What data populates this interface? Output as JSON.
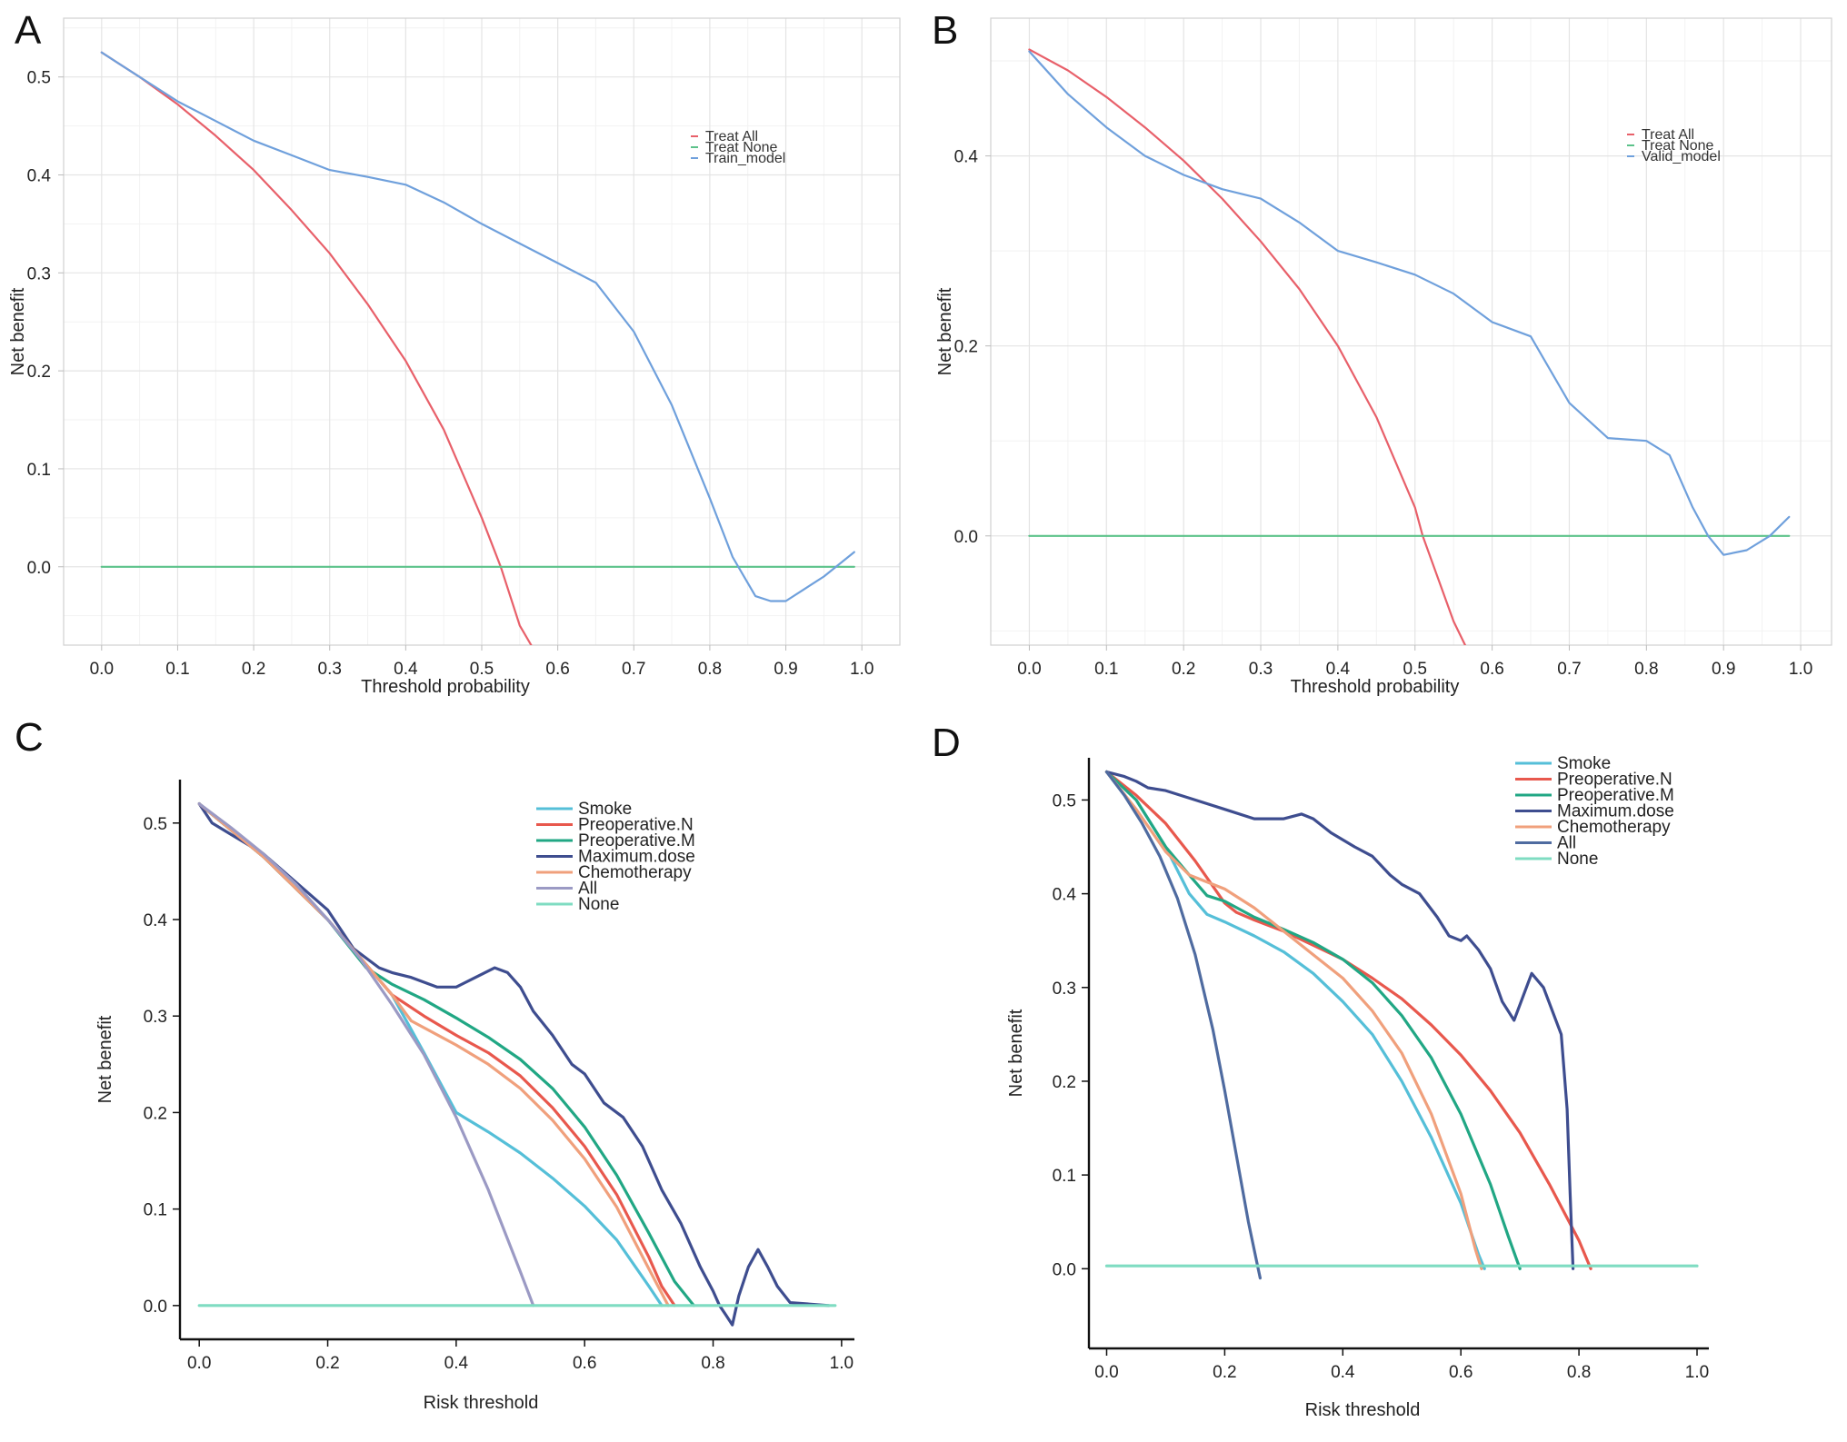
{
  "chart_data": [
    {
      "panel": "A",
      "type": "line",
      "xlabel": "Threshold probability",
      "ylabel": "Net benefit",
      "xlim": [
        -0.05,
        1.05
      ],
      "ylim": [
        -0.08,
        0.56
      ],
      "xticks": [
        "0.0",
        "0.1",
        "0.2",
        "0.3",
        "0.4",
        "0.5",
        "0.6",
        "0.7",
        "0.8",
        "0.9",
        "1.0"
      ],
      "xtick_values": [
        0,
        0.1,
        0.2,
        0.3,
        0.4,
        0.5,
        0.6,
        0.7,
        0.8,
        0.9,
        1.0
      ],
      "yticks": [
        "0.0",
        "0.1",
        "0.2",
        "0.3",
        "0.4",
        "0.5"
      ],
      "ytick_values": [
        0,
        0.1,
        0.2,
        0.3,
        0.4,
        0.5
      ],
      "grid": true,
      "legend_position": "top-right",
      "legend_style": "small",
      "series": [
        {
          "name": "Treat All",
          "color": "#e8606a",
          "x": [
            0,
            0.05,
            0.1,
            0.15,
            0.2,
            0.25,
            0.3,
            0.35,
            0.4,
            0.45,
            0.5,
            0.525,
            0.55,
            0.565
          ],
          "y": [
            0.525,
            0.5,
            0.472,
            0.44,
            0.405,
            0.364,
            0.32,
            0.268,
            0.21,
            0.14,
            0.05,
            0,
            -0.06,
            -0.08
          ]
        },
        {
          "name": "Treat None",
          "color": "#5cc28a",
          "x": [
            0,
            0.99
          ],
          "y": [
            0,
            0
          ]
        },
        {
          "name": "Train_model",
          "color": "#6fa0dc",
          "x": [
            0,
            0.05,
            0.1,
            0.15,
            0.2,
            0.25,
            0.3,
            0.35,
            0.4,
            0.45,
            0.5,
            0.55,
            0.6,
            0.65,
            0.7,
            0.75,
            0.8,
            0.83,
            0.86,
            0.88,
            0.9,
            0.92,
            0.95,
            0.99
          ],
          "y": [
            0.525,
            0.5,
            0.475,
            0.455,
            0.435,
            0.42,
            0.405,
            0.398,
            0.39,
            0.372,
            0.35,
            0.33,
            0.31,
            0.29,
            0.24,
            0.165,
            0.07,
            0.01,
            -0.03,
            -0.035,
            -0.035,
            -0.025,
            -0.01,
            0.015
          ]
        }
      ]
    },
    {
      "panel": "B",
      "type": "line",
      "xlabel": "Threshold probability",
      "ylabel": "Net benefit",
      "xlim": [
        -0.05,
        1.04
      ],
      "ylim": [
        -0.115,
        0.545
      ],
      "xticks": [
        "0.0",
        "0.1",
        "0.2",
        "0.3",
        "0.4",
        "0.5",
        "0.6",
        "0.7",
        "0.8",
        "0.9",
        "1.0"
      ],
      "xtick_values": [
        0,
        0.1,
        0.2,
        0.3,
        0.4,
        0.5,
        0.6,
        0.7,
        0.8,
        0.9,
        1.0
      ],
      "yticks": [
        "0.0",
        "0.2",
        "0.4"
      ],
      "ytick_values": [
        0,
        0.2,
        0.4
      ],
      "grid": true,
      "legend_position": "top-right",
      "legend_style": "small",
      "series": [
        {
          "name": "Treat All",
          "color": "#e8606a",
          "x": [
            0,
            0.05,
            0.1,
            0.15,
            0.2,
            0.25,
            0.3,
            0.35,
            0.4,
            0.45,
            0.5,
            0.51,
            0.55,
            0.565
          ],
          "y": [
            0.512,
            0.49,
            0.462,
            0.43,
            0.395,
            0.355,
            0.31,
            0.26,
            0.2,
            0.125,
            0.03,
            0,
            -0.09,
            -0.115
          ]
        },
        {
          "name": "Treat None",
          "color": "#5cc28a",
          "x": [
            0,
            0.985
          ],
          "y": [
            0,
            0
          ]
        },
        {
          "name": "Valid_model",
          "color": "#6fa0dc",
          "x": [
            0,
            0.05,
            0.1,
            0.15,
            0.2,
            0.25,
            0.3,
            0.35,
            0.4,
            0.45,
            0.5,
            0.55,
            0.6,
            0.65,
            0.7,
            0.75,
            0.8,
            0.83,
            0.86,
            0.88,
            0.9,
            0.93,
            0.96,
            0.985
          ],
          "y": [
            0.51,
            0.465,
            0.43,
            0.4,
            0.38,
            0.365,
            0.355,
            0.33,
            0.3,
            0.288,
            0.275,
            0.255,
            0.225,
            0.21,
            0.14,
            0.103,
            0.1,
            0.085,
            0.03,
            0,
            -0.02,
            -0.015,
            0,
            0.02
          ]
        }
      ]
    },
    {
      "panel": "C",
      "type": "line",
      "xlabel": "Risk threshold",
      "ylabel": "Net benefit",
      "xlim": [
        -0.03,
        1.02
      ],
      "ylim": [
        -0.035,
        0.545
      ],
      "xticks": [
        "0.0",
        "0.2",
        "0.4",
        "0.6",
        "0.8",
        "1.0"
      ],
      "xtick_values": [
        0,
        0.2,
        0.4,
        0.6,
        0.8,
        1.0
      ],
      "yticks": [
        "0.0",
        "0.1",
        "0.2",
        "0.3",
        "0.4",
        "0.5"
      ],
      "ytick_values": [
        0,
        0.1,
        0.2,
        0.3,
        0.4,
        0.5
      ],
      "grid": false,
      "legend_position": "top-right",
      "legend_style": "large",
      "series": [
        {
          "name": "Smoke",
          "color": "#55bfd8",
          "x": [
            0,
            0.1,
            0.2,
            0.3,
            0.35,
            0.4,
            0.45,
            0.5,
            0.55,
            0.6,
            0.65,
            0.7,
            0.72
          ],
          "y": [
            0.52,
            0.465,
            0.4,
            0.322,
            0.262,
            0.2,
            0.18,
            0.158,
            0.132,
            0.103,
            0.068,
            0.02,
            0
          ]
        },
        {
          "name": "Preoperative.N",
          "color": "#e8584d",
          "x": [
            0,
            0.1,
            0.2,
            0.3,
            0.35,
            0.4,
            0.45,
            0.5,
            0.55,
            0.6,
            0.65,
            0.7,
            0.72,
            0.74
          ],
          "y": [
            0.52,
            0.465,
            0.4,
            0.322,
            0.3,
            0.28,
            0.262,
            0.238,
            0.205,
            0.165,
            0.115,
            0.05,
            0.02,
            0
          ]
        },
        {
          "name": "Preoperative.M",
          "color": "#21a784",
          "x": [
            0,
            0.1,
            0.2,
            0.26,
            0.3,
            0.35,
            0.4,
            0.45,
            0.5,
            0.55,
            0.6,
            0.65,
            0.7,
            0.74,
            0.77
          ],
          "y": [
            0.52,
            0.465,
            0.4,
            0.35,
            0.333,
            0.317,
            0.298,
            0.278,
            0.255,
            0.225,
            0.185,
            0.135,
            0.075,
            0.025,
            0
          ]
        },
        {
          "name": "Maximum.dose",
          "color": "#3e4d8f",
          "x": [
            0,
            0.02,
            0.1,
            0.2,
            0.24,
            0.28,
            0.3,
            0.33,
            0.37,
            0.4,
            0.43,
            0.46,
            0.48,
            0.5,
            0.52,
            0.55,
            0.58,
            0.6,
            0.63,
            0.66,
            0.69,
            0.72,
            0.75,
            0.78,
            0.8,
            0.81,
            0.82,
            0.83,
            0.84,
            0.855,
            0.87,
            0.885,
            0.9,
            0.92,
            0.98
          ],
          "y": [
            0.52,
            0.5,
            0.468,
            0.41,
            0.37,
            0.35,
            0.345,
            0.34,
            0.33,
            0.33,
            0.34,
            0.35,
            0.345,
            0.33,
            0.305,
            0.28,
            0.25,
            0.24,
            0.21,
            0.195,
            0.165,
            0.12,
            0.085,
            0.04,
            0.015,
            0,
            -0.01,
            -0.02,
            0.01,
            0.04,
            0.058,
            0.04,
            0.02,
            0.003,
            0
          ]
        },
        {
          "name": "Chemotherapy",
          "color": "#f0a07c",
          "x": [
            0,
            0.1,
            0.2,
            0.3,
            0.33,
            0.4,
            0.45,
            0.5,
            0.55,
            0.6,
            0.65,
            0.7,
            0.73
          ],
          "y": [
            0.52,
            0.465,
            0.4,
            0.322,
            0.295,
            0.27,
            0.25,
            0.225,
            0.192,
            0.152,
            0.102,
            0.038,
            0
          ]
        },
        {
          "name": "All",
          "color": "#9b9ac4",
          "x": [
            0,
            0.05,
            0.1,
            0.15,
            0.2,
            0.25,
            0.3,
            0.35,
            0.4,
            0.45,
            0.5,
            0.52
          ],
          "y": [
            0.52,
            0.495,
            0.468,
            0.437,
            0.4,
            0.36,
            0.312,
            0.26,
            0.195,
            0.12,
            0.035,
            0
          ]
        },
        {
          "name": "None",
          "color": "#7fdcc2",
          "x": [
            0,
            0.99
          ],
          "y": [
            0,
            0
          ]
        }
      ]
    },
    {
      "panel": "D",
      "type": "line",
      "xlabel": "Risk threshold",
      "ylabel": "Net benefit",
      "xlim": [
        -0.03,
        1.02
      ],
      "ylim": [
        -0.085,
        0.545
      ],
      "xticks": [
        "0.0",
        "0.2",
        "0.4",
        "0.6",
        "0.8",
        "1.0"
      ],
      "xtick_values": [
        0,
        0.2,
        0.4,
        0.6,
        0.8,
        1.0
      ],
      "yticks": [
        "0.0",
        "0.1",
        "0.2",
        "0.3",
        "0.4",
        "0.5"
      ],
      "ytick_values": [
        0,
        0.1,
        0.2,
        0.3,
        0.4,
        0.5
      ],
      "grid": false,
      "legend_position": "top-right",
      "legend_style": "large",
      "series": [
        {
          "name": "Smoke",
          "color": "#55bfd8",
          "x": [
            0,
            0.05,
            0.1,
            0.14,
            0.17,
            0.2,
            0.25,
            0.3,
            0.35,
            0.4,
            0.45,
            0.5,
            0.55,
            0.6,
            0.63,
            0.64
          ],
          "y": [
            0.53,
            0.5,
            0.45,
            0.4,
            0.378,
            0.37,
            0.355,
            0.338,
            0.315,
            0.285,
            0.25,
            0.2,
            0.14,
            0.07,
            0.015,
            0
          ]
        },
        {
          "name": "Preoperative.N",
          "color": "#e8584d",
          "x": [
            0,
            0.05,
            0.1,
            0.15,
            0.2,
            0.22,
            0.25,
            0.3,
            0.35,
            0.4,
            0.45,
            0.5,
            0.55,
            0.6,
            0.65,
            0.7,
            0.75,
            0.8,
            0.82
          ],
          "y": [
            0.53,
            0.505,
            0.475,
            0.435,
            0.39,
            0.38,
            0.372,
            0.36,
            0.345,
            0.33,
            0.31,
            0.288,
            0.26,
            0.228,
            0.19,
            0.145,
            0.09,
            0.03,
            0
          ]
        },
        {
          "name": "Preoperative.M",
          "color": "#21a784",
          "x": [
            0,
            0.05,
            0.1,
            0.14,
            0.17,
            0.2,
            0.25,
            0.3,
            0.35,
            0.4,
            0.45,
            0.5,
            0.55,
            0.6,
            0.65,
            0.68,
            0.7
          ],
          "y": [
            0.53,
            0.5,
            0.45,
            0.42,
            0.398,
            0.392,
            0.375,
            0.362,
            0.348,
            0.33,
            0.305,
            0.27,
            0.225,
            0.165,
            0.09,
            0.035,
            0
          ]
        },
        {
          "name": "Maximum.dose",
          "color": "#3e4d8f",
          "x": [
            0,
            0.03,
            0.05,
            0.07,
            0.1,
            0.15,
            0.2,
            0.25,
            0.3,
            0.33,
            0.35,
            0.38,
            0.42,
            0.45,
            0.48,
            0.5,
            0.53,
            0.56,
            0.58,
            0.6,
            0.61,
            0.63,
            0.65,
            0.67,
            0.69,
            0.72,
            0.74,
            0.77,
            0.78,
            0.785,
            0.79
          ],
          "y": [
            0.53,
            0.525,
            0.52,
            0.513,
            0.51,
            0.5,
            0.49,
            0.48,
            0.48,
            0.485,
            0.48,
            0.465,
            0.45,
            0.44,
            0.42,
            0.41,
            0.4,
            0.375,
            0.355,
            0.35,
            0.355,
            0.34,
            0.32,
            0.285,
            0.265,
            0.315,
            0.3,
            0.25,
            0.17,
            0.08,
            0
          ]
        },
        {
          "name": "Chemotherapy",
          "color": "#f0a07c",
          "x": [
            0,
            0.05,
            0.1,
            0.14,
            0.2,
            0.25,
            0.3,
            0.35,
            0.4,
            0.45,
            0.5,
            0.55,
            0.6,
            0.625,
            0.635
          ],
          "y": [
            0.53,
            0.49,
            0.445,
            0.42,
            0.405,
            0.385,
            0.36,
            0.335,
            0.31,
            0.275,
            0.23,
            0.165,
            0.08,
            0.02,
            0
          ]
        },
        {
          "name": "All",
          "color": "#4f6ba0",
          "x": [
            0,
            0.03,
            0.06,
            0.09,
            0.12,
            0.15,
            0.18,
            0.2,
            0.22,
            0.24,
            0.255,
            0.26
          ],
          "y": [
            0.53,
            0.505,
            0.475,
            0.44,
            0.395,
            0.335,
            0.255,
            0.19,
            0.12,
            0.05,
            0.005,
            -0.01
          ]
        },
        {
          "name": "None",
          "color": "#7fdcc2",
          "x": [
            0,
            1.0
          ],
          "y": [
            0.003,
            0.003
          ]
        }
      ]
    }
  ]
}
